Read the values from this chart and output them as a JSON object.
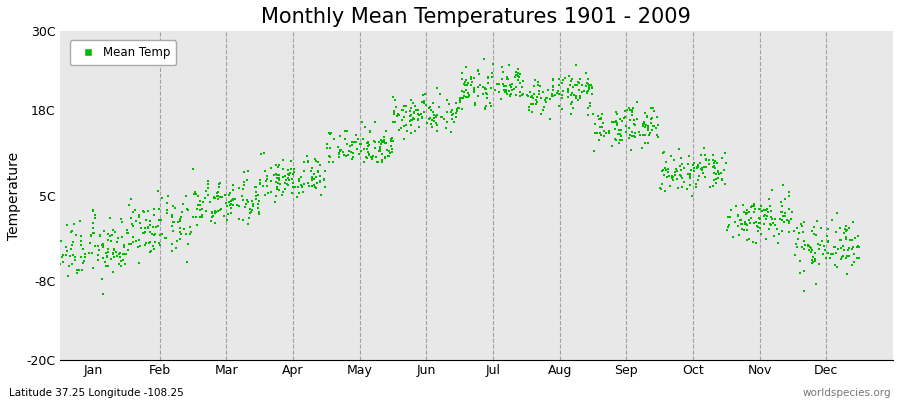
{
  "title": "Monthly Mean Temperatures 1901 - 2009",
  "ylabel": "Temperature",
  "subtitle": "Latitude 37.25 Longitude -108.25",
  "watermark": "worldspecies.org",
  "ylim": [
    -20,
    30
  ],
  "yticks": [
    -20,
    -8,
    5,
    18,
    30
  ],
  "ytick_labels": [
    "-20C",
    "-8C",
    "5C",
    "18C",
    "30C"
  ],
  "months": [
    "Jan",
    "Feb",
    "Mar",
    "Apr",
    "May",
    "Jun",
    "Jul",
    "Aug",
    "Sep",
    "Oct",
    "Nov",
    "Dec"
  ],
  "dot_color": "#00BB00",
  "dot_size": 3,
  "background_color": "#E8E8E8",
  "title_fontsize": 15,
  "axis_label_fontsize": 10,
  "tick_label_fontsize": 9,
  "legend_label": "Mean Temp",
  "num_years": 109,
  "monthly_means": [
    -3.2,
    0.0,
    3.8,
    7.5,
    12.5,
    17.5,
    21.5,
    20.5,
    15.5,
    8.5,
    1.5,
    -2.5
  ],
  "monthly_stds": [
    2.3,
    2.2,
    1.8,
    1.6,
    1.5,
    1.5,
    1.3,
    1.4,
    1.5,
    1.7,
    1.9,
    2.1
  ],
  "xlim": [
    0.0,
    12.5
  ],
  "dashed_line_color": "#888888",
  "dashed_line_positions": [
    1.5,
    2.5,
    3.5,
    4.5,
    5.5,
    6.5,
    7.5,
    8.5,
    9.5,
    10.5,
    11.5
  ]
}
